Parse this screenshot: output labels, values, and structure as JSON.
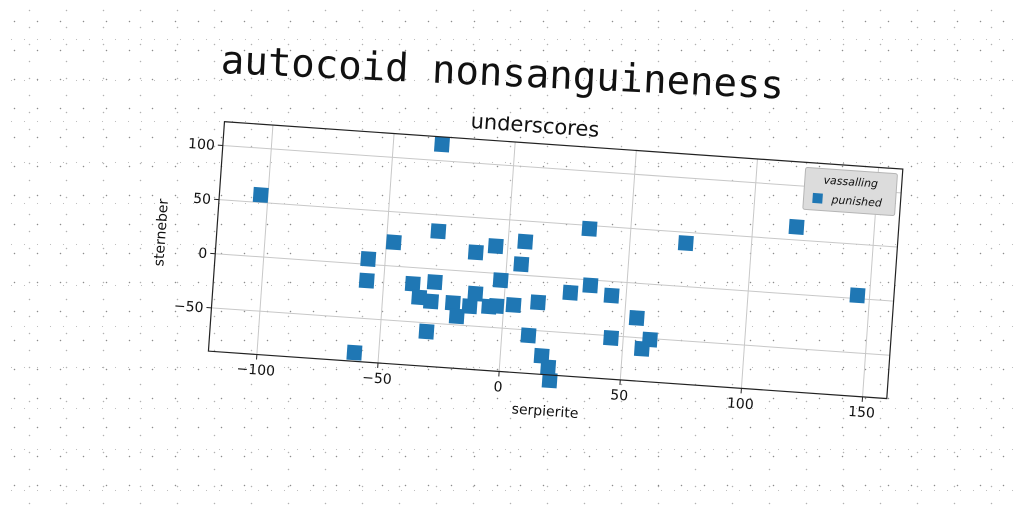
{
  "page": {
    "suptitle": "autocoid nonsanguineness"
  },
  "chart_data": {
    "type": "scatter",
    "title": "underscores",
    "xlabel": "serpierite",
    "ylabel": "sterneber",
    "xlim": [
      -120,
      160
    ],
    "ylim": [
      -90,
      122
    ],
    "xticks": [
      -100,
      -50,
      0,
      50,
      100,
      150
    ],
    "yticks": [
      -50,
      0,
      50,
      100
    ],
    "grid": true,
    "legend": {
      "title": "vassalling",
      "location": "top-right"
    },
    "series": [
      {
        "name": "punished",
        "color": "#1f77b4",
        "marker": "square",
        "x": [
          -103,
          -30,
          -57,
          -47,
          -29,
          -13,
          -5,
          -2,
          7,
          6,
          33,
          73,
          118,
          145,
          -57,
          -38,
          -35,
          -30,
          -29,
          -21,
          -19,
          -14,
          -12,
          -6,
          -3,
          4,
          14,
          27,
          35,
          44,
          55,
          -31,
          11,
          45,
          61,
          58,
          -60,
          17,
          20,
          21
        ],
        "y": [
          57,
          115,
          5,
          22,
          35,
          18,
          25,
          -6,
          31,
          10,
          47,
          40,
          62,
          3,
          -15,
          -15,
          -27,
          -30,
          -12,
          -30,
          -42,
          -32,
          -20,
          -31,
          -30,
          -28,
          -24,
          -13,
          -5,
          -13,
          -32,
          -58,
          -55,
          -52,
          -51,
          -60,
          -82,
          -73,
          -83,
          -95
        ]
      }
    ]
  }
}
